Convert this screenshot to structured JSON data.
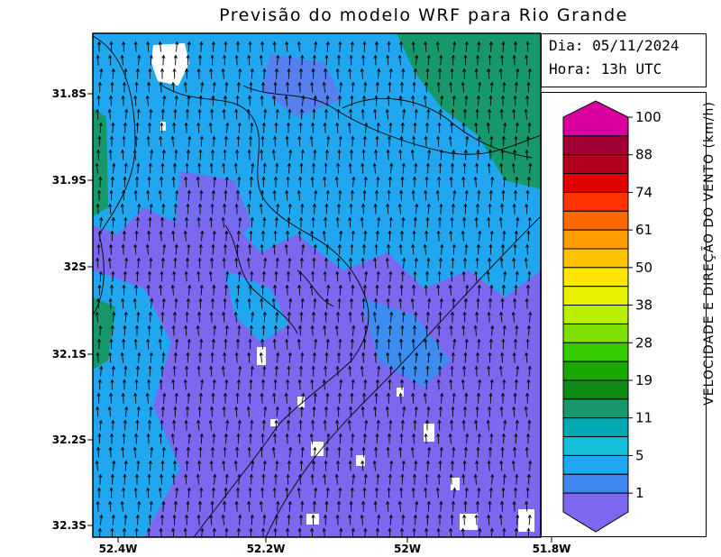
{
  "title": "Previsão do modelo WRF para Rio Grande",
  "info": {
    "day": "Dia: 05/11/2024",
    "hour": "Hora: 13h UTC"
  },
  "legend": {
    "title": "VELOCIDADE E DIREÇÃO DO VENTO (km/h)",
    "labels": [
      "100",
      "88",
      "74",
      "61",
      "50",
      "38",
      "28",
      "19",
      "11",
      "5",
      "1"
    ],
    "colors": [
      "#d7009f",
      "#a10035",
      "#b3001f",
      "#e30000",
      "#ff3300",
      "#ff6a00",
      "#ff9c00",
      "#ffc200",
      "#ffe600",
      "#e6f000",
      "#b8f000",
      "#7ee000",
      "#33cc00",
      "#16a800",
      "#0e8a14",
      "#17986a",
      "#00a8b4",
      "#14c0da",
      "#21a6f0",
      "#3f87f0",
      "#7b68ee"
    ]
  },
  "axes": {
    "y_ticks": [
      "31.8S",
      "31.9S",
      "32S",
      "32.1S",
      "32.2S",
      "32.3S"
    ],
    "x_ticks": [
      "52.4W",
      "52.2W",
      "52W",
      "51.8W"
    ]
  },
  "map": {
    "background_colors": {
      "low": "#7b68ee",
      "mid": "#21a6f0",
      "high": "#17986a"
    },
    "wind_direction": "north"
  }
}
